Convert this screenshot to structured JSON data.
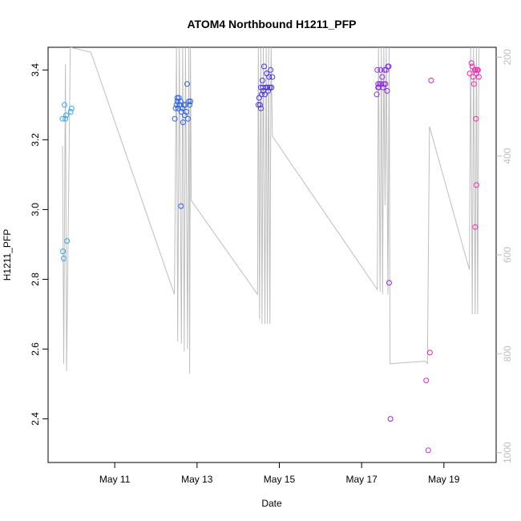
{
  "chart_data": {
    "type": "scatter",
    "title": "ATOM4 Northbound H1211_PFP",
    "xlabel": "Date",
    "ylabel": "H1211_PFP",
    "x_ticks": [
      {
        "label": "May 11",
        "day": 11
      },
      {
        "label": "May 13",
        "day": 13
      },
      {
        "label": "May 15",
        "day": 15
      },
      {
        "label": "May 17",
        "day": 17
      },
      {
        "label": "May 19",
        "day": 19
      }
    ],
    "y_ticks": [
      "2.4",
      "2.6",
      "2.8",
      "3.0",
      "3.2",
      "3.4"
    ],
    "y2_ticks": [
      "200",
      "400",
      "600",
      "800",
      "1000"
    ],
    "xlim_day": [
      9.38,
      20.27
    ],
    "ylim": [
      2.275,
      3.465
    ],
    "y2lim": [
      1020,
      180
    ],
    "grid": false,
    "series": [
      {
        "color": "#36a6e8",
        "points": [
          [
            9.73,
            3.26
          ],
          [
            9.78,
            3.3
          ],
          [
            9.8,
            3.26
          ],
          [
            9.82,
            3.27
          ],
          [
            9.93,
            3.28
          ],
          [
            9.95,
            3.29
          ],
          [
            9.74,
            2.88
          ],
          [
            9.76,
            2.86
          ],
          [
            9.84,
            2.91
          ]
        ]
      },
      {
        "color": "#2f62e8",
        "points": [
          [
            12.46,
            3.26
          ],
          [
            12.5,
            3.3
          ],
          [
            12.52,
            3.31
          ],
          [
            12.54,
            3.29
          ],
          [
            12.56,
            3.32
          ],
          [
            12.58,
            3.3
          ],
          [
            12.6,
            3.31
          ],
          [
            12.62,
            3.28
          ],
          [
            12.64,
            3.29
          ],
          [
            12.66,
            3.25
          ],
          [
            12.68,
            3.3
          ],
          [
            12.7,
            3.27
          ],
          [
            12.72,
            3.3
          ],
          [
            12.74,
            3.28
          ],
          [
            12.76,
            3.36
          ],
          [
            12.78,
            3.26
          ],
          [
            12.8,
            3.31
          ],
          [
            12.82,
            3.3
          ],
          [
            12.84,
            3.31
          ],
          [
            12.52,
            3.32
          ],
          [
            12.48,
            3.29
          ],
          [
            12.61,
            3.01
          ]
        ]
      },
      {
        "color": "#4a36e0",
        "points": [
          [
            14.49,
            3.3
          ],
          [
            14.51,
            3.32
          ],
          [
            14.53,
            3.3
          ],
          [
            14.55,
            3.35
          ],
          [
            14.57,
            3.33
          ],
          [
            14.59,
            3.37
          ],
          [
            14.61,
            3.34
          ],
          [
            14.63,
            3.41
          ],
          [
            14.65,
            3.33
          ],
          [
            14.67,
            3.35
          ],
          [
            14.69,
            3.39
          ],
          [
            14.71,
            3.35
          ],
          [
            14.73,
            3.34
          ],
          [
            14.75,
            3.38
          ],
          [
            14.77,
            3.35
          ],
          [
            14.79,
            3.4
          ],
          [
            14.81,
            3.35
          ],
          [
            14.83,
            3.38
          ],
          [
            14.55,
            3.29
          ],
          [
            14.6,
            3.35
          ]
        ]
      },
      {
        "color": "#8a2de0",
        "points": [
          [
            17.38,
            3.4
          ],
          [
            17.4,
            3.36
          ],
          [
            17.42,
            3.35
          ],
          [
            17.44,
            3.36
          ],
          [
            17.46,
            3.4
          ],
          [
            17.48,
            3.36
          ],
          [
            17.5,
            3.38
          ],
          [
            17.52,
            3.35
          ],
          [
            17.54,
            3.36
          ],
          [
            17.56,
            3.4
          ],
          [
            17.58,
            3.36
          ],
          [
            17.6,
            3.4
          ],
          [
            17.62,
            3.34
          ],
          [
            17.64,
            3.41
          ],
          [
            17.66,
            3.41
          ],
          [
            17.4,
            3.35
          ],
          [
            17.37,
            3.33
          ],
          [
            17.67,
            2.79
          ],
          [
            17.7,
            2.4
          ]
        ]
      },
      {
        "color": "#d624d4",
        "points": [
          [
            18.57,
            2.51
          ],
          [
            18.62,
            2.31
          ],
          [
            18.66,
            2.59
          ],
          [
            18.69,
            3.37
          ]
        ]
      },
      {
        "color": "#ee2cb0",
        "points": [
          [
            19.63,
            3.39
          ],
          [
            19.67,
            3.42
          ],
          [
            19.69,
            3.41
          ],
          [
            19.71,
            3.38
          ],
          [
            19.73,
            3.36
          ],
          [
            19.75,
            3.4
          ],
          [
            19.77,
            3.4
          ],
          [
            19.79,
            3.39
          ],
          [
            19.81,
            3.4
          ],
          [
            19.83,
            3.4
          ],
          [
            19.85,
            3.38
          ],
          [
            19.78,
            3.26
          ],
          [
            19.79,
            3.07
          ],
          [
            19.76,
            2.95
          ]
        ]
      }
    ],
    "secondary_line": {
      "color": "#bebebe",
      "points": [
        [
          9.73,
          380
        ],
        [
          9.76,
          820
        ],
        [
          9.8,
          215
        ],
        [
          9.83,
          835
        ],
        [
          9.92,
          180
        ],
        [
          10.42,
          190
        ],
        [
          12.45,
          680
        ],
        [
          12.5,
          180
        ],
        [
          12.53,
          775
        ],
        [
          12.57,
          180
        ],
        [
          12.62,
          780
        ],
        [
          12.65,
          180
        ],
        [
          12.69,
          795
        ],
        [
          12.72,
          180
        ],
        [
          12.77,
          790
        ],
        [
          12.8,
          180
        ],
        [
          12.82,
          840
        ],
        [
          12.84,
          180
        ],
        [
          12.86,
          490
        ],
        [
          14.47,
          680
        ],
        [
          14.49,
          180
        ],
        [
          14.52,
          730
        ],
        [
          14.55,
          180
        ],
        [
          14.58,
          740
        ],
        [
          14.61,
          180
        ],
        [
          14.65,
          740
        ],
        [
          14.68,
          180
        ],
        [
          14.71,
          740
        ],
        [
          14.74,
          180
        ],
        [
          14.77,
          740
        ],
        [
          14.8,
          180
        ],
        [
          14.83,
          360
        ],
        [
          17.38,
          670
        ],
        [
          17.41,
          180
        ],
        [
          17.45,
          675
        ],
        [
          17.48,
          180
        ],
        [
          17.51,
          680
        ],
        [
          17.54,
          180
        ],
        [
          17.57,
          500
        ],
        [
          17.6,
          180
        ],
        [
          17.64,
          680
        ],
        [
          17.67,
          180
        ],
        [
          17.69,
          820
        ],
        [
          18.55,
          815
        ],
        [
          18.6,
          820
        ],
        [
          18.65,
          340
        ],
        [
          19.62,
          630
        ],
        [
          19.65,
          180
        ],
        [
          19.69,
          720
        ],
        [
          19.72,
          180
        ],
        [
          19.76,
          720
        ],
        [
          19.79,
          180
        ],
        [
          19.82,
          720
        ],
        [
          19.85,
          180
        ]
      ]
    }
  }
}
